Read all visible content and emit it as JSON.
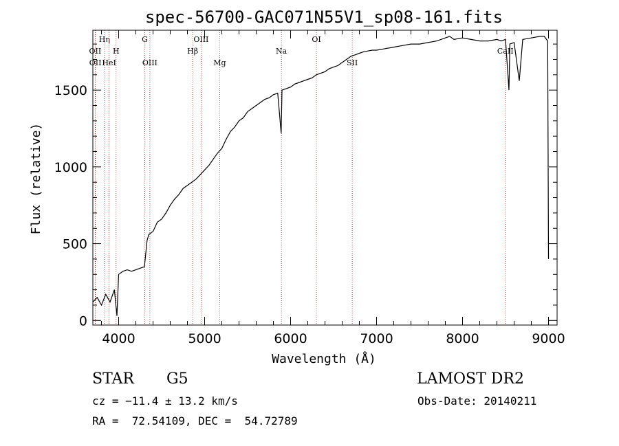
{
  "chart_data": {
    "type": "line",
    "title": "spec-56700-GAC071N55V1_sp08-161.fits",
    "xlabel": "Wavelength (Å)",
    "ylabel": "Flux (relative)",
    "xlim": [
      3700,
      9100
    ],
    "ylim": [
      -30,
      1890
    ],
    "xticks": [
      4000,
      5000,
      6000,
      7000,
      8000,
      9000
    ],
    "xtick_labels": [
      "4000",
      "5000",
      "6000",
      "7000",
      "8000",
      "9000"
    ],
    "yticks": [
      0,
      500,
      1000,
      1500
    ],
    "ytick_labels": [
      "0",
      "500",
      "1000",
      "1500"
    ],
    "grid": false,
    "series": [
      {
        "name": "flux",
        "x": [
          3700,
          3750,
          3800,
          3850,
          3900,
          3950,
          3980,
          4000,
          4050,
          4100,
          4150,
          4200,
          4250,
          4300,
          4330,
          4350,
          4400,
          4450,
          4500,
          4550,
          4600,
          4650,
          4700,
          4750,
          4800,
          4850,
          4900,
          4950,
          5000,
          5050,
          5100,
          5150,
          5200,
          5250,
          5300,
          5350,
          5400,
          5450,
          5500,
          5550,
          5600,
          5650,
          5700,
          5750,
          5800,
          5850,
          5890,
          5900,
          5950,
          6000,
          6050,
          6100,
          6150,
          6200,
          6250,
          6300,
          6350,
          6400,
          6450,
          6500,
          6550,
          6600,
          6650,
          6700,
          6750,
          6800,
          6850,
          6900,
          6950,
          7000,
          7100,
          7200,
          7300,
          7400,
          7500,
          7600,
          7700,
          7800,
          7850,
          7900,
          8000,
          8100,
          8200,
          8300,
          8400,
          8450,
          8500,
          8540,
          8550,
          8600,
          8660,
          8700,
          8800,
          8900,
          8950,
          8990,
          9000
        ],
        "values": [
          120,
          150,
          100,
          170,
          120,
          200,
          30,
          300,
          320,
          330,
          320,
          330,
          340,
          350,
          520,
          560,
          580,
          640,
          660,
          700,
          750,
          790,
          820,
          860,
          880,
          900,
          920,
          950,
          980,
          1010,
          1050,
          1090,
          1120,
          1180,
          1230,
          1260,
          1300,
          1320,
          1360,
          1380,
          1400,
          1420,
          1440,
          1450,
          1470,
          1480,
          1220,
          1500,
          1510,
          1520,
          1540,
          1550,
          1560,
          1570,
          1580,
          1600,
          1610,
          1620,
          1640,
          1650,
          1660,
          1680,
          1700,
          1720,
          1730,
          1740,
          1750,
          1755,
          1760,
          1760,
          1770,
          1780,
          1790,
          1800,
          1800,
          1810,
          1820,
          1840,
          1850,
          1830,
          1840,
          1830,
          1820,
          1820,
          1830,
          1820,
          1830,
          1500,
          1800,
          1810,
          1560,
          1830,
          1840,
          1850,
          1850,
          1820,
          400
        ]
      }
    ],
    "spectral_lines": [
      {
        "label": "OII",
        "wavelength": 3727,
        "row": "mid"
      },
      {
        "label": "OII",
        "wavelength": 3729,
        "row": "low"
      },
      {
        "label": "Hη",
        "wavelength": 3835,
        "row": "top"
      },
      {
        "label": "HeI",
        "wavelength": 3889,
        "row": "low"
      },
      {
        "label": "H",
        "wavelength": 3970,
        "row": "mid"
      },
      {
        "label": "G",
        "wavelength": 4304,
        "row": "top"
      },
      {
        "label": "OIII",
        "wavelength": 4363,
        "row": "low"
      },
      {
        "label": "Hβ",
        "wavelength": 4861,
        "row": "mid"
      },
      {
        "label": "OIII",
        "wavelength": 4959,
        "row": "top"
      },
      {
        "label": "Mg",
        "wavelength": 5175,
        "row": "low"
      },
      {
        "label": "Na",
        "wavelength": 5893,
        "row": "mid"
      },
      {
        "label": "OI",
        "wavelength": 6300,
        "row": "top"
      },
      {
        "label": "SII",
        "wavelength": 6717,
        "row": "low"
      },
      {
        "label": "CaII",
        "wavelength": 8498,
        "row": "mid"
      }
    ]
  },
  "info": {
    "object_class": "STAR",
    "subclass": "G5",
    "survey": "LAMOST DR2",
    "redshift_text": "cz = −11.4 ± 13.2 km/s",
    "obs_date": "Obs-Date: 20140211",
    "coords": "RA =  72.54109, DEC =  54.72789"
  }
}
